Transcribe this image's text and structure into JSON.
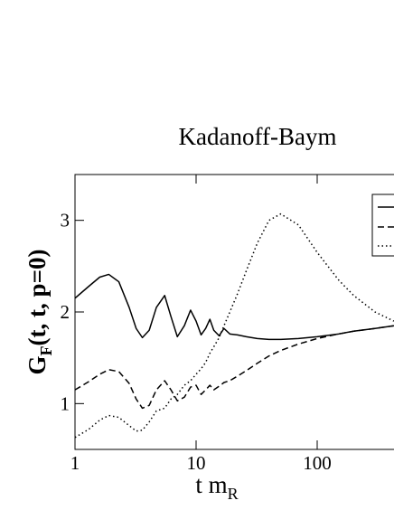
{
  "chart_data": {
    "type": "line",
    "title": "Kadanoff-Baym",
    "xlabel": [
      "t m",
      "R"
    ],
    "ylabel": [
      "G",
      "F",
      "(t, t, ",
      "p=0",
      ")"
    ],
    "xscale": "log",
    "xlim": [
      1,
      430
    ],
    "ylim": [
      0.5,
      3.5
    ],
    "xticks": [
      1,
      10,
      100
    ],
    "yticks": [
      1,
      2,
      3
    ],
    "x": [
      1,
      1.3,
      1.6,
      1.9,
      2.3,
      2.8,
      3.2,
      3.6,
      4.1,
      4.7,
      5.5,
      6.2,
      7,
      8,
      9,
      10,
      11,
      12,
      13,
      14,
      15.5,
      17,
      19,
      22,
      26,
      32,
      40,
      50,
      70,
      100,
      150,
      200,
      300,
      430
    ],
    "series": [
      {
        "color": "#000",
        "dash": "solid",
        "values": [
          2.15,
          2.28,
          2.38,
          2.41,
          2.33,
          2.05,
          1.82,
          1.72,
          1.8,
          2.05,
          2.18,
          1.95,
          1.73,
          1.85,
          2.02,
          1.9,
          1.75,
          1.82,
          1.92,
          1.8,
          1.74,
          1.82,
          1.76,
          1.75,
          1.73,
          1.71,
          1.7,
          1.7,
          1.71,
          1.73,
          1.76,
          1.79,
          1.82,
          1.85
        ]
      },
      {
        "color": "#000",
        "dash": "dashed",
        "values": [
          1.15,
          1.24,
          1.32,
          1.37,
          1.35,
          1.22,
          1.05,
          0.95,
          0.98,
          1.15,
          1.25,
          1.15,
          1.03,
          1.07,
          1.18,
          1.2,
          1.1,
          1.15,
          1.2,
          1.15,
          1.19,
          1.23,
          1.25,
          1.3,
          1.36,
          1.44,
          1.52,
          1.58,
          1.65,
          1.71,
          1.76,
          1.79,
          1.82,
          1.85
        ]
      },
      {
        "color": "#000",
        "dash": "dotted",
        "values": [
          0.63,
          0.72,
          0.82,
          0.87,
          0.85,
          0.76,
          0.7,
          0.71,
          0.8,
          0.92,
          0.95,
          1.05,
          1.1,
          1.2,
          1.25,
          1.32,
          1.38,
          1.45,
          1.55,
          1.62,
          1.72,
          1.85,
          2.0,
          2.2,
          2.45,
          2.75,
          3.0,
          3.07,
          2.95,
          2.65,
          2.35,
          2.18,
          2.0,
          1.9
        ]
      }
    ]
  }
}
